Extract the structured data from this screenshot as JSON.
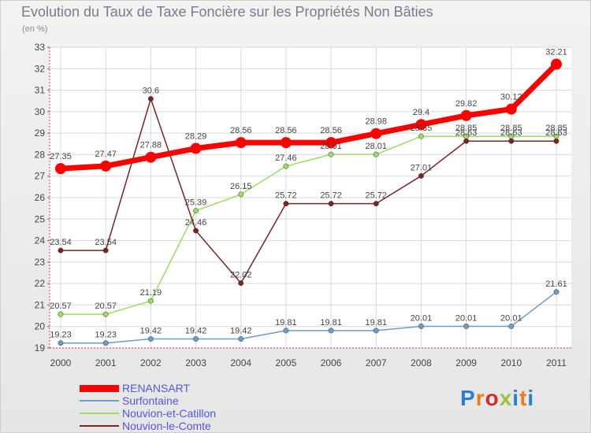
{
  "title": "Evolution du Taux de Taxe Foncière sur les Propriétés Non Bâties",
  "subtitle": "(en %)",
  "logo_text": "Proxiti",
  "chart_data": {
    "type": "line",
    "title": "Evolution du Taux de Taxe Foncière sur les Propriétés Non Bâties",
    "ylabel": "(en %)",
    "xlabel": "",
    "ylim": [
      19,
      33
    ],
    "yticks": [
      19,
      20,
      21,
      22,
      23,
      24,
      25,
      26,
      27,
      28,
      29,
      30,
      31,
      32,
      33
    ],
    "grid": true,
    "legend_position": "bottom-left",
    "categories": [
      "2000",
      "2001",
      "2002",
      "2003",
      "2004",
      "2005",
      "2006",
      "2007",
      "2008",
      "2009",
      "2010",
      "2011"
    ],
    "series": [
      {
        "name": "RENANSART",
        "color": "#ff0000",
        "values": [
          27.35,
          27.47,
          27.88,
          28.29,
          28.56,
          28.56,
          28.56,
          28.98,
          29.4,
          29.82,
          30.12,
          32.21
        ],
        "labels": [
          "27.35",
          "27.47",
          "27.88",
          "28.29",
          "28.56",
          "28.56",
          "28.56",
          "28.98",
          "29.4",
          "29.82",
          "30.12",
          "32.21"
        ]
      },
      {
        "name": "Surfontaine",
        "color": "#6a9ccc",
        "values": [
          19.23,
          19.23,
          19.42,
          19.42,
          19.42,
          19.81,
          19.81,
          19.81,
          20.01,
          20.01,
          20.01,
          21.61
        ],
        "labels": [
          "19.23",
          "19.23",
          "19.42",
          "19.42",
          "19.42",
          "19.81",
          "19.81",
          "19.81",
          "20.01",
          "20.01",
          "20.01",
          "21.61"
        ]
      },
      {
        "name": "Nouvion-et-Catillon",
        "color": "#99dd66",
        "values": [
          20.57,
          20.57,
          21.19,
          25.39,
          26.15,
          27.46,
          28.01,
          28.01,
          28.85,
          28.85,
          28.85,
          28.85
        ],
        "labels": [
          "20.57",
          "20.57",
          "21.19",
          "25.39",
          "26.15",
          "27.46",
          "28.01",
          "28.01",
          "28.85",
          "28.85",
          "28.85",
          "28.85"
        ]
      },
      {
        "name": "Nouvion-le-Comte",
        "color": "#7a2424",
        "values": [
          23.54,
          23.54,
          30.6,
          24.46,
          22.02,
          25.72,
          25.72,
          25.72,
          27.01,
          28.63,
          28.63,
          28.63
        ],
        "labels": [
          "23.54",
          "23.54",
          "30.6",
          "24.46",
          "22.02",
          "25.72",
          "25.72",
          "25.72",
          "27.01",
          "28.63",
          "28.63",
          "28.63"
        ]
      }
    ]
  }
}
